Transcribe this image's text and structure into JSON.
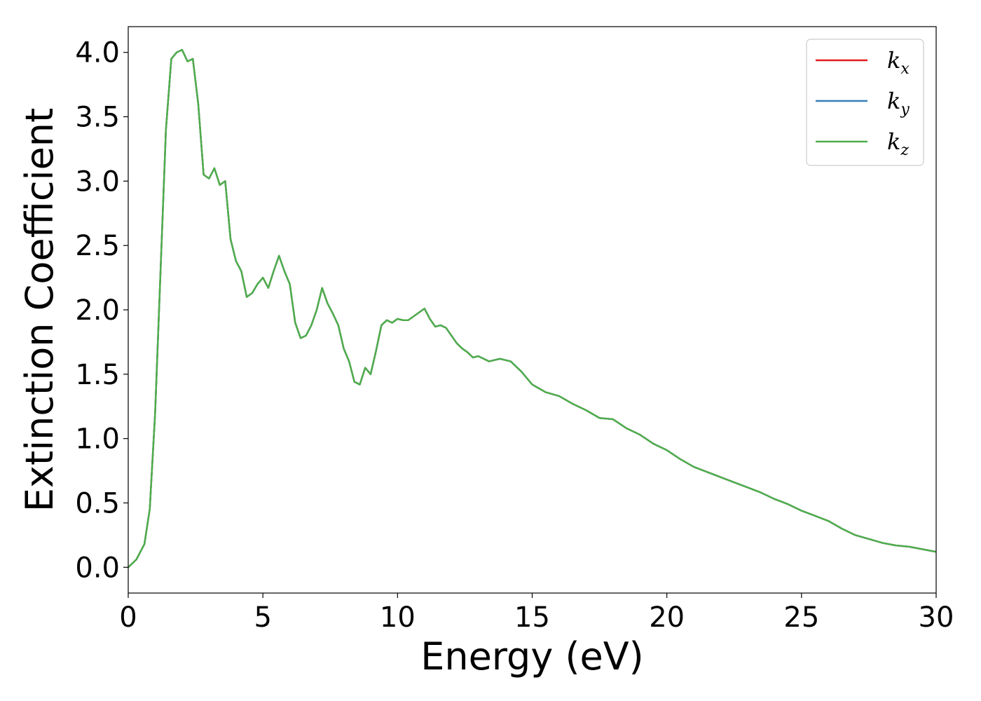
{
  "chart_data": {
    "type": "line",
    "xlabel": "Energy (eV)",
    "ylabel": "Extinction Coefficient",
    "xlim": [
      0,
      30
    ],
    "ylim": [
      -0.2,
      4.2
    ],
    "xticks": [
      "0",
      "5",
      "10",
      "15",
      "20",
      "25",
      "30"
    ],
    "yticks": [
      "0.0",
      "0.5",
      "1.0",
      "1.5",
      "2.0",
      "2.5",
      "3.0",
      "3.5",
      "4.0"
    ],
    "grid": false,
    "legend_position": "top-right",
    "x": [
      0,
      0.3,
      0.6,
      0.8,
      1.0,
      1.2,
      1.4,
      1.6,
      1.8,
      2.0,
      2.2,
      2.4,
      2.6,
      2.8,
      3.0,
      3.2,
      3.4,
      3.6,
      3.8,
      4.0,
      4.2,
      4.4,
      4.6,
      4.8,
      5.0,
      5.2,
      5.4,
      5.6,
      5.8,
      6.0,
      6.2,
      6.4,
      6.6,
      6.8,
      7.0,
      7.2,
      7.4,
      7.6,
      7.8,
      8.0,
      8.2,
      8.4,
      8.6,
      8.8,
      9.0,
      9.2,
      9.4,
      9.6,
      9.8,
      10.0,
      10.2,
      10.4,
      10.6,
      10.8,
      11.0,
      11.2,
      11.4,
      11.6,
      11.8,
      12.0,
      12.2,
      12.4,
      12.6,
      12.8,
      13.0,
      13.4,
      13.8,
      14.2,
      14.6,
      15.0,
      15.5,
      16.0,
      16.5,
      17.0,
      17.5,
      18.0,
      18.5,
      19.0,
      19.5,
      20.0,
      20.5,
      21.0,
      21.5,
      22.0,
      22.5,
      23.0,
      23.5,
      24.0,
      24.5,
      25.0,
      25.5,
      26.0,
      26.5,
      27.0,
      27.5,
      28.0,
      28.5,
      29.0,
      29.5,
      30.0
    ],
    "series": [
      {
        "name": "k_x",
        "label_base": "k",
        "label_sub": "x",
        "color": "#e41a1c",
        "values": [
          0.0,
          0.06,
          0.18,
          0.45,
          1.2,
          2.3,
          3.4,
          3.95,
          4.0,
          4.02,
          3.93,
          3.95,
          3.6,
          3.05,
          3.02,
          3.1,
          2.97,
          3.0,
          2.55,
          2.38,
          2.3,
          2.1,
          2.13,
          2.2,
          2.25,
          2.17,
          2.3,
          2.42,
          2.3,
          2.2,
          1.9,
          1.78,
          1.8,
          1.88,
          2.0,
          2.17,
          2.05,
          1.97,
          1.88,
          1.7,
          1.6,
          1.44,
          1.42,
          1.55,
          1.5,
          1.68,
          1.88,
          1.92,
          1.9,
          1.93,
          1.92,
          1.92,
          1.95,
          1.98,
          2.01,
          1.93,
          1.87,
          1.88,
          1.86,
          1.8,
          1.74,
          1.7,
          1.67,
          1.63,
          1.64,
          1.6,
          1.62,
          1.6,
          1.52,
          1.42,
          1.36,
          1.33,
          1.27,
          1.22,
          1.16,
          1.15,
          1.08,
          1.03,
          0.96,
          0.91,
          0.84,
          0.78,
          0.74,
          0.7,
          0.66,
          0.62,
          0.58,
          0.53,
          0.49,
          0.44,
          0.4,
          0.36,
          0.3,
          0.25,
          0.22,
          0.19,
          0.17,
          0.16,
          0.14,
          0.12
        ]
      },
      {
        "name": "k_y",
        "label_base": "k",
        "label_sub": "y",
        "color": "#377eb8",
        "values": [
          0.0,
          0.06,
          0.18,
          0.45,
          1.2,
          2.3,
          3.4,
          3.95,
          4.0,
          4.02,
          3.93,
          3.95,
          3.6,
          3.05,
          3.02,
          3.1,
          2.97,
          3.0,
          2.55,
          2.38,
          2.3,
          2.1,
          2.13,
          2.2,
          2.25,
          2.17,
          2.3,
          2.42,
          2.3,
          2.2,
          1.9,
          1.78,
          1.8,
          1.88,
          2.0,
          2.17,
          2.05,
          1.97,
          1.88,
          1.7,
          1.6,
          1.44,
          1.42,
          1.55,
          1.5,
          1.68,
          1.88,
          1.92,
          1.9,
          1.93,
          1.92,
          1.92,
          1.95,
          1.98,
          2.01,
          1.93,
          1.87,
          1.88,
          1.86,
          1.8,
          1.74,
          1.7,
          1.67,
          1.63,
          1.64,
          1.6,
          1.62,
          1.6,
          1.52,
          1.42,
          1.36,
          1.33,
          1.27,
          1.22,
          1.16,
          1.15,
          1.08,
          1.03,
          0.96,
          0.91,
          0.84,
          0.78,
          0.74,
          0.7,
          0.66,
          0.62,
          0.58,
          0.53,
          0.49,
          0.44,
          0.4,
          0.36,
          0.3,
          0.25,
          0.22,
          0.19,
          0.17,
          0.16,
          0.14,
          0.12
        ]
      },
      {
        "name": "k_z",
        "label_base": "k",
        "label_sub": "z",
        "color": "#4daf4a",
        "values": [
          0.0,
          0.06,
          0.18,
          0.45,
          1.2,
          2.3,
          3.4,
          3.95,
          4.0,
          4.02,
          3.93,
          3.95,
          3.6,
          3.05,
          3.02,
          3.1,
          2.97,
          3.0,
          2.55,
          2.38,
          2.3,
          2.1,
          2.13,
          2.2,
          2.25,
          2.17,
          2.3,
          2.42,
          2.3,
          2.2,
          1.9,
          1.78,
          1.8,
          1.88,
          2.0,
          2.17,
          2.05,
          1.97,
          1.88,
          1.7,
          1.6,
          1.44,
          1.42,
          1.55,
          1.5,
          1.68,
          1.88,
          1.92,
          1.9,
          1.93,
          1.92,
          1.92,
          1.95,
          1.98,
          2.01,
          1.93,
          1.87,
          1.88,
          1.86,
          1.8,
          1.74,
          1.7,
          1.67,
          1.63,
          1.64,
          1.6,
          1.62,
          1.6,
          1.52,
          1.42,
          1.36,
          1.33,
          1.27,
          1.22,
          1.16,
          1.15,
          1.08,
          1.03,
          0.96,
          0.91,
          0.84,
          0.78,
          0.74,
          0.7,
          0.66,
          0.62,
          0.58,
          0.53,
          0.49,
          0.44,
          0.4,
          0.36,
          0.3,
          0.25,
          0.22,
          0.19,
          0.17,
          0.16,
          0.14,
          0.12
        ]
      }
    ]
  }
}
